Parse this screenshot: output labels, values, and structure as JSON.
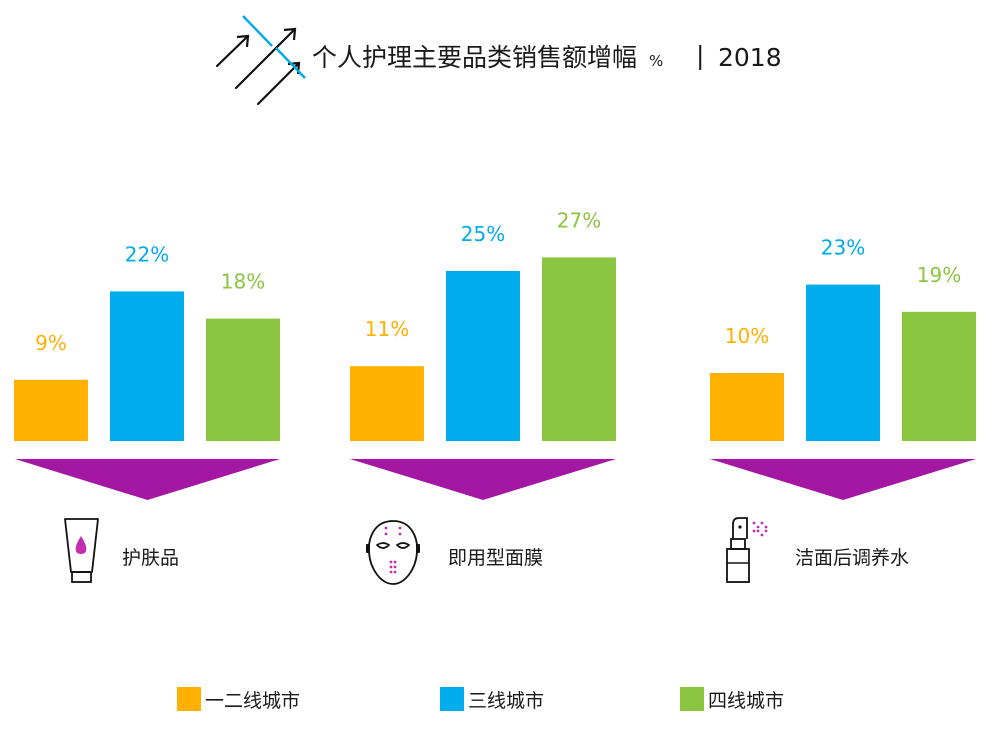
{
  "title": {
    "main": "个人护理主要品类销售额增幅",
    "unit": "%",
    "separator": "|",
    "year": "2018"
  },
  "chart_data": {
    "type": "bar",
    "categories": [
      "护肤品",
      "即用型面膜",
      "洁面后调养水"
    ],
    "series": [
      {
        "name": "一二线城市",
        "values": [
          9,
          11,
          10
        ]
      },
      {
        "name": "三线城市",
        "values": [
          22,
          25,
          23
        ]
      },
      {
        "name": "四线城市",
        "values": [
          18,
          27,
          19
        ]
      }
    ],
    "value_labels": [
      [
        "9%",
        "22%",
        "18%"
      ],
      [
        "11%",
        "25%",
        "27%"
      ],
      [
        "10%",
        "23%",
        "19%"
      ]
    ],
    "colors": {
      "series": [
        "#FFB000",
        "#00ACEC",
        "#8BC53F"
      ],
      "arrow": "#A317A3",
      "category_icon_accent": "#C02FB0",
      "title_lines": "#00ACEC"
    },
    "category_icons": [
      "lotion-tube-icon",
      "face-mask-icon",
      "spray-bottle-icon"
    ],
    "legend_position": "bottom",
    "grid": false,
    "ylim": [
      0,
      30
    ]
  }
}
